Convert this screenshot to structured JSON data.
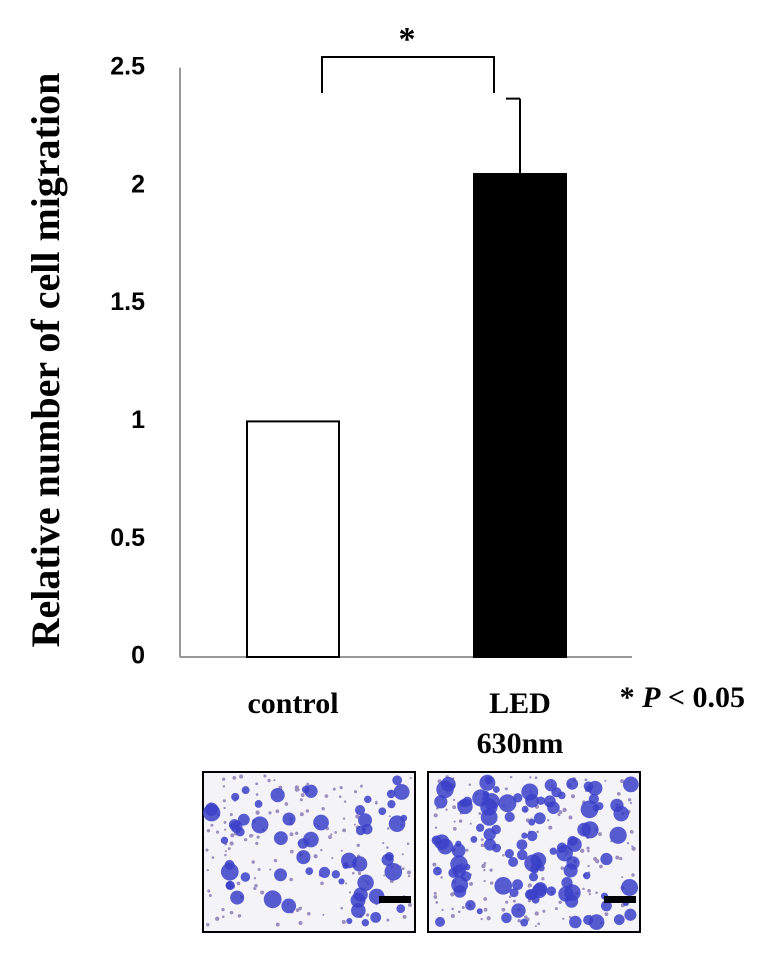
{
  "chart_data": {
    "type": "bar",
    "y_label": "Relative number of cell migration",
    "categories": [
      "control",
      "LED 630nm"
    ],
    "values": [
      1,
      2.05
    ],
    "errors": [
      null,
      0.32
    ],
    "colors": [
      "#ffffff",
      "#000000"
    ],
    "ylim": [
      0,
      2.5
    ],
    "yticks": [
      0,
      0.5,
      1,
      1.5,
      2,
      2.5
    ],
    "significance": {
      "label": "*"
    },
    "annotation": "* P < 0.05"
  }
}
